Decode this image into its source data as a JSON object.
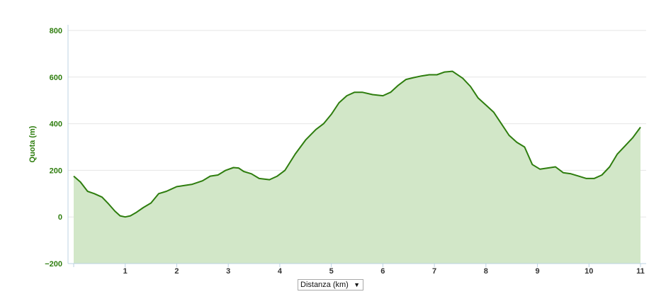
{
  "chart_data": {
    "type": "area",
    "ylabel": "Quota (m)",
    "xlabel": "Distanza (km)",
    "xlim": [
      0,
      11
    ],
    "ylim": [
      -200,
      800
    ],
    "yticks": [
      "800",
      "600",
      "400",
      "200",
      "0",
      "−200"
    ],
    "ytick_values": [
      800,
      600,
      400,
      200,
      0,
      -200
    ],
    "xticks": [
      "1",
      "2",
      "3",
      "4",
      "5",
      "6",
      "7",
      "8",
      "9",
      "10",
      "11"
    ],
    "xtick_values": [
      1,
      2,
      3,
      4,
      5,
      6,
      7,
      8,
      9,
      10,
      11
    ],
    "grid": true,
    "legend": false,
    "colors": {
      "line": "#2e7d0e",
      "fill": "#d2e7c8",
      "grid": "#e6e6e6",
      "axis": "#bcd3e3",
      "ytick": "#2e7d0e"
    },
    "x": [
      0,
      0.13,
      0.27,
      0.4,
      0.55,
      0.68,
      0.8,
      0.9,
      1.0,
      1.1,
      1.22,
      1.35,
      1.5,
      1.65,
      1.8,
      1.9,
      2.0,
      2.15,
      2.3,
      2.5,
      2.65,
      2.8,
      2.95,
      3.1,
      3.2,
      3.3,
      3.45,
      3.6,
      3.8,
      3.95,
      4.1,
      4.3,
      4.5,
      4.7,
      4.85,
      5.0,
      5.15,
      5.3,
      5.45,
      5.6,
      5.8,
      6.0,
      6.15,
      6.3,
      6.45,
      6.6,
      6.75,
      6.9,
      7.05,
      7.2,
      7.35,
      7.55,
      7.7,
      7.85,
      8.0,
      8.15,
      8.3,
      8.45,
      8.6,
      8.75,
      8.9,
      9.05,
      9.2,
      9.35,
      9.5,
      9.65,
      9.8,
      9.95,
      10.1,
      10.25,
      10.4,
      10.55,
      10.7,
      10.85,
      11.0
    ],
    "values": [
      175,
      150,
      110,
      100,
      85,
      55,
      25,
      5,
      0,
      5,
      20,
      40,
      60,
      100,
      110,
      120,
      130,
      135,
      140,
      155,
      175,
      180,
      200,
      212,
      210,
      195,
      185,
      165,
      160,
      175,
      200,
      270,
      330,
      375,
      400,
      440,
      490,
      520,
      535,
      535,
      525,
      520,
      535,
      565,
      590,
      598,
      605,
      610,
      610,
      622,
      625,
      595,
      560,
      510,
      480,
      450,
      400,
      350,
      320,
      300,
      225,
      205,
      210,
      215,
      190,
      185,
      175,
      165,
      165,
      180,
      215,
      270,
      305,
      340,
      385
    ]
  },
  "controls": {
    "xaxis_select": "Distanza (km)"
  }
}
